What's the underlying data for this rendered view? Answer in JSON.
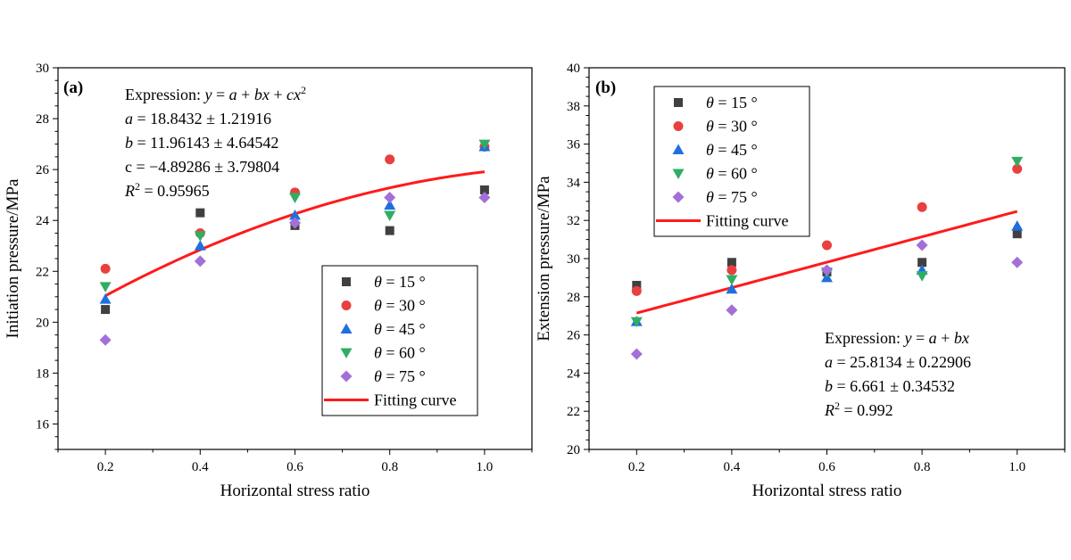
{
  "chart_data": [
    {
      "type": "scatter",
      "panel": "(a)",
      "xlabel": "Horizontal stress ratio",
      "ylabel": "Initiation pressure/MPa",
      "xlim": [
        0.1,
        1.1
      ],
      "ylim": [
        15,
        30
      ],
      "xticks": [
        0.2,
        0.4,
        0.6,
        0.8,
        1.0
      ],
      "xtick_labels": [
        "0.2",
        "0.4",
        "0.6",
        "0.8",
        "1.0"
      ],
      "yticks": [
        16,
        18,
        20,
        22,
        24,
        26,
        28,
        30
      ],
      "ytick_labels": [
        "16",
        "18",
        "20",
        "22",
        "24",
        "26",
        "28",
        "30"
      ],
      "x": [
        0.2,
        0.4,
        0.6,
        0.8,
        1.0
      ],
      "series": [
        {
          "name": "θ = 15 °",
          "marker": "square",
          "color": "#404040",
          "values": [
            20.5,
            24.3,
            23.8,
            23.6,
            25.2
          ]
        },
        {
          "name": "θ = 30 °",
          "marker": "circle",
          "color": "#e8403f",
          "values": [
            22.1,
            23.5,
            25.1,
            26.4,
            26.9
          ]
        },
        {
          "name": "θ = 45 °",
          "marker": "triangle-up",
          "color": "#1f6fe0",
          "values": [
            20.9,
            23.0,
            24.2,
            24.6,
            26.9
          ]
        },
        {
          "name": "θ = 60 °",
          "marker": "triangle-down",
          "color": "#2fae63",
          "values": [
            21.4,
            23.4,
            24.9,
            24.2,
            27.0
          ]
        },
        {
          "name": "θ = 75 °",
          "marker": "diamond",
          "color": "#a36fd8",
          "values": [
            19.3,
            22.4,
            23.9,
            24.9,
            24.9
          ]
        }
      ],
      "fit": {
        "name": "Fitting curve",
        "color": "#ff1a1a",
        "kind": "quadratic",
        "a": 18.8432,
        "b": 11.96143,
        "c": -4.89286,
        "x_range": [
          0.2,
          1.0
        ]
      },
      "annotation": {
        "line1_prefix": "Expression: ",
        "line1_formula": "y = a + bx + cx",
        "line1_sup": "2",
        "line2": "a = 18.8432 ± 1.21916",
        "line3": "b = 11.96143 ± 4.64542",
        "line4": "c = −4.89286 ± 3.79804",
        "line5_base": "R",
        "line5_sup": "2",
        "line5_rest": " = 0.95965"
      },
      "legend_position": "bottom-right"
    },
    {
      "type": "scatter",
      "panel": "(b)",
      "xlabel": "Horizontal stress ratio",
      "ylabel": "Extension pressure/MPa",
      "xlim": [
        0.1,
        1.1
      ],
      "ylim": [
        20,
        40
      ],
      "xticks": [
        0.2,
        0.4,
        0.6,
        0.8,
        1.0
      ],
      "xtick_labels": [
        "0.2",
        "0.4",
        "0.6",
        "0.8",
        "1.0"
      ],
      "yticks": [
        20,
        22,
        24,
        26,
        28,
        30,
        32,
        34,
        36,
        38,
        40
      ],
      "ytick_labels": [
        "20",
        "22",
        "24",
        "26",
        "28",
        "30",
        "32",
        "34",
        "36",
        "38",
        "40"
      ],
      "x": [
        0.2,
        0.4,
        0.6,
        0.8,
        1.0
      ],
      "series": [
        {
          "name": "θ = 15 °",
          "marker": "square",
          "color": "#404040",
          "values": [
            28.6,
            29.8,
            29.3,
            29.8,
            31.3
          ]
        },
        {
          "name": "θ = 30 °",
          "marker": "circle",
          "color": "#e8403f",
          "values": [
            28.3,
            29.4,
            30.7,
            32.7,
            34.7
          ]
        },
        {
          "name": "θ = 45 °",
          "marker": "triangle-up",
          "color": "#1f6fe0",
          "values": [
            26.7,
            28.4,
            29.0,
            29.4,
            31.7
          ]
        },
        {
          "name": "θ = 60 °",
          "marker": "triangle-down",
          "color": "#2fae63",
          "values": [
            26.7,
            28.9,
            29.3,
            29.1,
            35.1
          ]
        },
        {
          "name": "θ = 75 °",
          "marker": "diamond",
          "color": "#a36fd8",
          "values": [
            25.0,
            27.3,
            29.4,
            30.7,
            29.8
          ]
        }
      ],
      "fit": {
        "name": "Fitting curve",
        "color": "#ff1a1a",
        "kind": "linear",
        "a": 25.8134,
        "b": 6.661,
        "x_range": [
          0.2,
          1.0
        ]
      },
      "annotation": {
        "line1_prefix": "Expression: ",
        "line1_formula": "y = a + bx",
        "line2": "a = 25.8134 ± 0.22906",
        "line3": "b = 6.661 ± 0.34532",
        "line5_base": "R",
        "line5_sup": "2",
        "line5_rest": " = 0.992"
      },
      "legend_position": "top-left"
    }
  ]
}
